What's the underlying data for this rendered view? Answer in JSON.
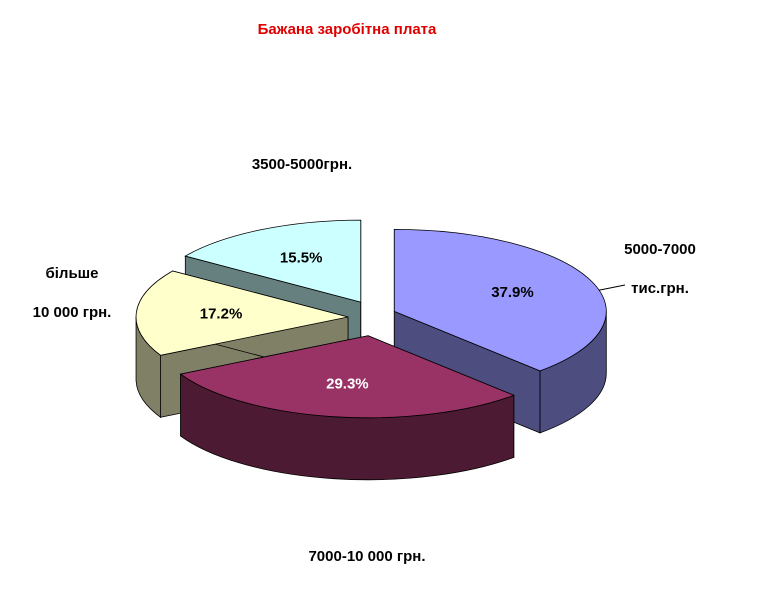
{
  "chart_data": {
    "type": "pie",
    "title": "Бажана заробітна плата",
    "categories": [
      [
        "5000-7000",
        "тис.грн."
      ],
      [
        "7000-10 000 грн."
      ],
      [
        "більше",
        "10 000 грн."
      ],
      [
        "3500-5000грн."
      ]
    ],
    "values": [
      37.9,
      29.3,
      17.2,
      15.5
    ],
    "value_labels": [
      "37.9%",
      "29.3%",
      "17.2%",
      "15.5%"
    ],
    "colors": [
      "#9999ff",
      "#993366",
      "#ffffcc",
      "#ccffff"
    ],
    "title_color": "#e00000"
  }
}
